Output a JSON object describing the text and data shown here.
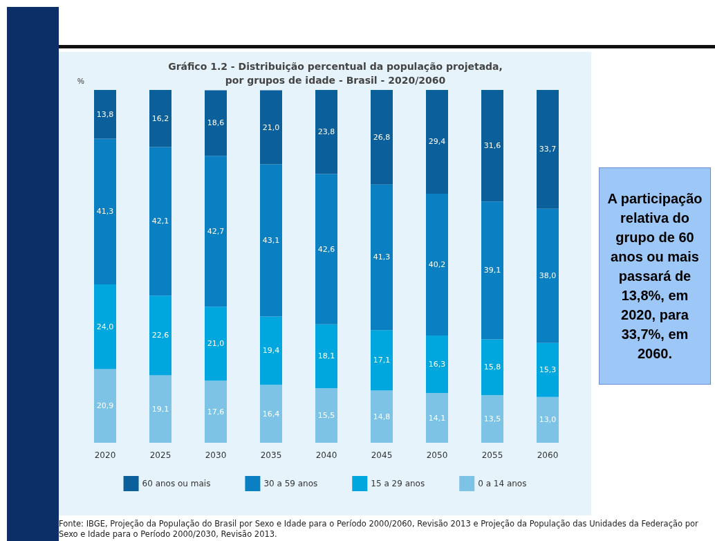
{
  "chart_data": {
    "type": "bar",
    "title": "Gráfico 1.2 - Distribuição percentual da população projetada,\npor grupos de idade - Brasil - 2020/2060",
    "ylabel": "%",
    "categories": [
      "2020",
      "2025",
      "2030",
      "2035",
      "2040",
      "2045",
      "2050",
      "2055",
      "2060"
    ],
    "stacked": true,
    "legend": "bottom",
    "grid": false,
    "tick_labels": "x",
    "series": [
      {
        "name": "0 a 14 anos",
        "color": "#7cc3e6",
        "values": [
          20.9,
          19.1,
          17.6,
          16.4,
          15.5,
          14.8,
          14.1,
          13.5,
          13.0
        ],
        "value_labels": [
          "20,9",
          "19,1",
          "17,6",
          "16,4",
          "15,5",
          "14,8",
          "14,1",
          "13,5",
          "13,0"
        ]
      },
      {
        "name": "15 a 29 anos",
        "color": "#00a6de",
        "values": [
          24.0,
          22.6,
          21.0,
          19.4,
          18.1,
          17.1,
          16.3,
          15.8,
          15.3
        ],
        "value_labels": [
          "24,0",
          "22,6",
          "21,0",
          "19,4",
          "18,1",
          "17,1",
          "16,3",
          "15,8",
          "15,3"
        ]
      },
      {
        "name": "30 a 59 anos",
        "color": "#0a80c2",
        "values": [
          41.3,
          42.1,
          42.7,
          43.1,
          42.6,
          41.3,
          40.2,
          39.1,
          38.0
        ],
        "value_labels": [
          "41,3",
          "42,1",
          "42,7",
          "43,1",
          "42,6",
          "41,3",
          "40,2",
          "39,1",
          "38,0"
        ]
      },
      {
        "name": "60 anos ou mais",
        "color": "#0b5f9a",
        "values": [
          13.8,
          16.2,
          18.6,
          21.0,
          23.8,
          26.8,
          29.4,
          31.6,
          33.7
        ],
        "value_labels": [
          "13,8",
          "16,2",
          "18,6",
          "21,0",
          "23,8",
          "26,8",
          "29,4",
          "31,6",
          "33,7"
        ]
      }
    ],
    "annotations": [
      "A participação relativa do grupo de 60 anos ou mais passará de 13,8%, em 2020, para 33,7%, em 2060.",
      "Fonte: IBGE, Projeção da População do Brasil por Sexo e Idade para o Período 2000/2060, Revisão 2013 e Projeção da População das Unidades da Federação por Sexo e Idade para o Período 2000/2030, Revisão 2013."
    ]
  }
}
